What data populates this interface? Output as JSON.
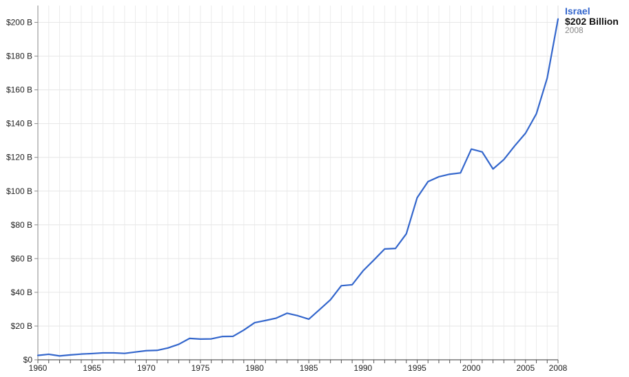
{
  "chart_data": {
    "type": "line",
    "title": "",
    "xlabel": "",
    "ylabel": "",
    "xlim": [
      1960,
      2008
    ],
    "ylim": [
      0,
      210
    ],
    "grid": true,
    "y_ticks": [
      {
        "value": 0,
        "label": "$0"
      },
      {
        "value": 20,
        "label": "$20 B"
      },
      {
        "value": 40,
        "label": "$40 B"
      },
      {
        "value": 60,
        "label": "$60 B"
      },
      {
        "value": 80,
        "label": "$80 B"
      },
      {
        "value": 100,
        "label": "$100 B"
      },
      {
        "value": 120,
        "label": "$120 B"
      },
      {
        "value": 140,
        "label": "$140 B"
      },
      {
        "value": 160,
        "label": "$160 B"
      },
      {
        "value": 180,
        "label": "$180 B"
      },
      {
        "value": 200,
        "label": "$200 B"
      }
    ],
    "x_ticks": [
      {
        "value": 1960,
        "label": "1960"
      },
      {
        "value": 1965,
        "label": "1965"
      },
      {
        "value": 1970,
        "label": "1970"
      },
      {
        "value": 1975,
        "label": "1975"
      },
      {
        "value": 1980,
        "label": "1980"
      },
      {
        "value": 1985,
        "label": "1985"
      },
      {
        "value": 1990,
        "label": "1990"
      },
      {
        "value": 1995,
        "label": "1995"
      },
      {
        "value": 2000,
        "label": "2000"
      },
      {
        "value": 2005,
        "label": "2005"
      },
      {
        "value": 2008,
        "label": "2008"
      }
    ],
    "series": [
      {
        "name": "Israel",
        "color": "#3366cc",
        "x": [
          1960,
          1961,
          1962,
          1963,
          1964,
          1965,
          1966,
          1967,
          1968,
          1969,
          1970,
          1971,
          1972,
          1973,
          1974,
          1975,
          1976,
          1977,
          1978,
          1979,
          1980,
          1981,
          1982,
          1983,
          1984,
          1985,
          1986,
          1987,
          1988,
          1989,
          1990,
          1991,
          1992,
          1993,
          1994,
          1995,
          1996,
          1997,
          1998,
          1999,
          2000,
          2001,
          2002,
          2003,
          2004,
          2005,
          2006,
          2007,
          2008
        ],
        "y": [
          2.6,
          3.3,
          2.3,
          2.9,
          3.4,
          3.7,
          4.1,
          4.1,
          3.8,
          4.6,
          5.4,
          5.6,
          7.0,
          9.2,
          12.7,
          12.3,
          12.4,
          13.8,
          13.9,
          17.6,
          22.0,
          23.3,
          24.7,
          27.6,
          26.1,
          24.1,
          29.8,
          35.6,
          43.9,
          44.5,
          52.7,
          59.1,
          65.7,
          66.0,
          74.7,
          96.1,
          105.6,
          108.5,
          110.0,
          110.8,
          124.9,
          123.2,
          113.1,
          118.7,
          126.8,
          134.3,
          145.8,
          167.0,
          202.0
        ]
      }
    ],
    "highlight": {
      "series": "Israel",
      "value_text": "$202 Billion",
      "year_text": "2008"
    }
  }
}
